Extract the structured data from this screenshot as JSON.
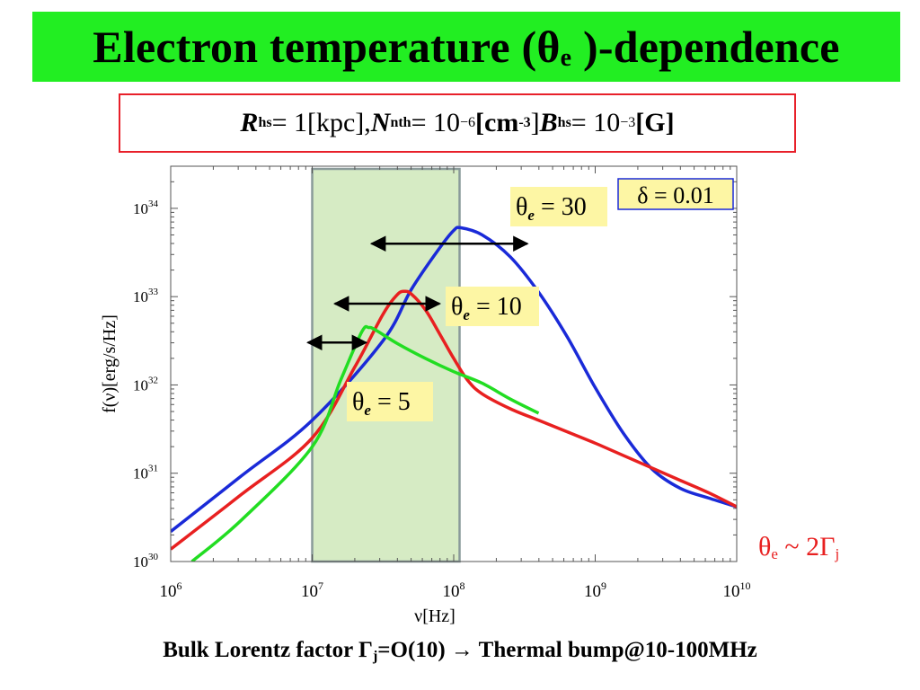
{
  "slide": {
    "title_main": "Electron temperature (θ",
    "title_sub": "e",
    "title_end": " )-dependence",
    "params_R": "R",
    "params_R_sub": "hs",
    "params_R_val": " = 1[kpc], ",
    "params_N": "N",
    "params_N_sub": "nth",
    "params_N_val": " = 10",
    "params_N_exp": "−6",
    "params_N_unit": "[cm",
    "params_N_unit_exp": "-3",
    "params_N_close": "]",
    "params_B": "B",
    "params_B_sub": "hs",
    "params_B_val": " = 10",
    "params_B_exp": "−3",
    "params_B_unit": "[G]",
    "footer_main": "Bulk Lorentz factor Γ",
    "footer_sub": "j",
    "footer_end": "=O(10) → Thermal bump@10-100MHz",
    "relation_main": "θ",
    "relation_sub1": "e",
    "relation_mid": " ~ 2Γ",
    "relation_sub2": "j"
  },
  "chart_data": {
    "type": "line",
    "xlabel": "ν[Hz]",
    "ylabel": "f(ν)[erg/s/Hz]",
    "xscale": "log",
    "yscale": "log",
    "xlim": [
      1000000.0,
      10000000000.0
    ],
    "ylim": [
      1e+30,
      3e+34
    ],
    "x_ticks": [
      {
        "base": "10",
        "exp": "6",
        "value": 6
      },
      {
        "base": "10",
        "exp": "7",
        "value": 7
      },
      {
        "base": "10",
        "exp": "8",
        "value": 8
      },
      {
        "base": "10",
        "exp": "9",
        "value": 9
      },
      {
        "base": "10",
        "exp": "10",
        "value": 10
      }
    ],
    "y_ticks": [
      {
        "base": "10",
        "exp": "30",
        "value": 30
      },
      {
        "base": "10",
        "exp": "31",
        "value": 31
      },
      {
        "base": "10",
        "exp": "32",
        "value": 32
      },
      {
        "base": "10",
        "exp": "33",
        "value": 33
      },
      {
        "base": "10",
        "exp": "34",
        "value": 34
      }
    ],
    "highlight_band": {
      "x_from": 10000000.0,
      "x_to": 110000000.0,
      "color": "#d6ebc4"
    },
    "delta_label": "δ = 0.01",
    "series": [
      {
        "label_theta": "θ",
        "label_sub": "e",
        "label_value": " = 30",
        "color": "#1a2ad8",
        "log_x": [
          6.0,
          6.5,
          7.0,
          7.5,
          7.7,
          7.9,
          8.0,
          8.05,
          8.2,
          8.4,
          8.6,
          8.8,
          9.0,
          9.2,
          9.4,
          9.6,
          9.8,
          10.0
        ],
        "log_y": [
          30.34,
          30.97,
          31.6,
          32.5,
          33.08,
          33.55,
          33.75,
          33.78,
          33.7,
          33.45,
          33.05,
          32.55,
          31.97,
          31.45,
          31.05,
          30.83,
          30.72,
          30.62
        ],
        "arrow_log_x": [
          7.42,
          8.52
        ],
        "arrow_log_y": 33.6
      },
      {
        "label_theta": "θ",
        "label_sub": "e",
        "label_value": " = 10",
        "color": "#e82020",
        "log_x": [
          6.0,
          6.5,
          7.0,
          7.3,
          7.5,
          7.6,
          7.65,
          7.7,
          7.8,
          7.9,
          8.0,
          8.1,
          8.2,
          8.4,
          8.6,
          8.8,
          9.0,
          9.2,
          9.4,
          9.6,
          9.8,
          10.0
        ],
        "log_y": [
          30.14,
          30.76,
          31.4,
          32.2,
          32.8,
          33.02,
          33.06,
          33.03,
          32.85,
          32.58,
          32.3,
          32.05,
          31.9,
          31.73,
          31.6,
          31.47,
          31.34,
          31.2,
          31.06,
          30.92,
          30.78,
          30.62
        ],
        "arrow_log_x": [
          7.16,
          7.9
        ],
        "arrow_log_y": 32.92
      },
      {
        "label_theta": "θ",
        "label_sub": "e",
        "label_value": " = 5",
        "color": "#22dd22",
        "log_x": [
          6.15,
          6.5,
          7.0,
          7.2,
          7.35,
          7.4,
          7.45,
          7.6,
          7.8,
          8.0,
          8.2,
          8.4,
          8.6
        ],
        "log_y": [
          30.0,
          30.47,
          31.3,
          32.05,
          32.6,
          32.65,
          32.62,
          32.47,
          32.3,
          32.15,
          32.02,
          31.84,
          31.68
        ],
        "arrow_log_x": [
          6.97,
          7.38
        ],
        "arrow_log_y": 32.48
      }
    ]
  }
}
